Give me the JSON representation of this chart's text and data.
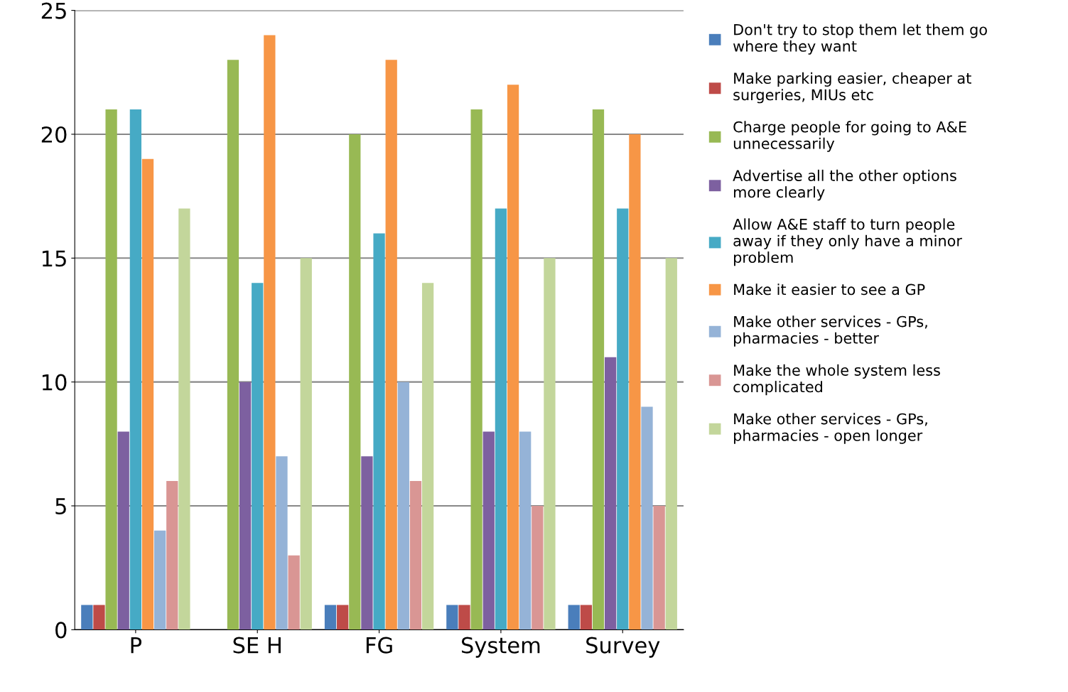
{
  "chart_data": {
    "type": "bar",
    "categories": [
      "P",
      "SE H",
      "FG",
      "System",
      "Survey"
    ],
    "series": [
      {
        "name": "Don't try to stop them let them go\nwhere they want",
        "color": "#4a7ebb",
        "values": [
          1,
          0,
          1,
          1,
          1
        ]
      },
      {
        "name": "Make parking easier, cheaper at\nsurgeries, MIUs etc",
        "color": "#be4b48",
        "values": [
          1,
          0,
          1,
          1,
          1
        ]
      },
      {
        "name": "Charge people for going to A&E\nunnecessarily",
        "color": "#98b954",
        "values": [
          21,
          23,
          20,
          21,
          21
        ]
      },
      {
        "name": "Advertise all the other options\nmore clearly",
        "color": "#7d60a0",
        "values": [
          8,
          10,
          7,
          8,
          11
        ]
      },
      {
        "name": "Allow A&E staff to turn people\naway if they only have a minor\nproblem",
        "color": "#46aac5",
        "values": [
          21,
          14,
          16,
          17,
          17
        ]
      },
      {
        "name": "Make it easier to see a GP",
        "color": "#f79646",
        "values": [
          19,
          24,
          23,
          22,
          20
        ]
      },
      {
        "name": "Make other services - GPs,\npharmacies - better",
        "color": "#95b3d7",
        "values": [
          4,
          7,
          10,
          8,
          9
        ]
      },
      {
        "name": "Make the whole system less\ncomplicated",
        "color": "#d99694",
        "values": [
          6,
          3,
          6,
          5,
          5
        ]
      },
      {
        "name": "Make other services - GPs,\npharmacies - open longer",
        "color": "#c3d69b",
        "values": [
          17,
          15,
          14,
          15,
          15
        ]
      }
    ],
    "ylim": [
      0,
      25
    ],
    "yticks": [
      0,
      5,
      10,
      15,
      20,
      25
    ],
    "grid": "y",
    "legend": "right"
  }
}
